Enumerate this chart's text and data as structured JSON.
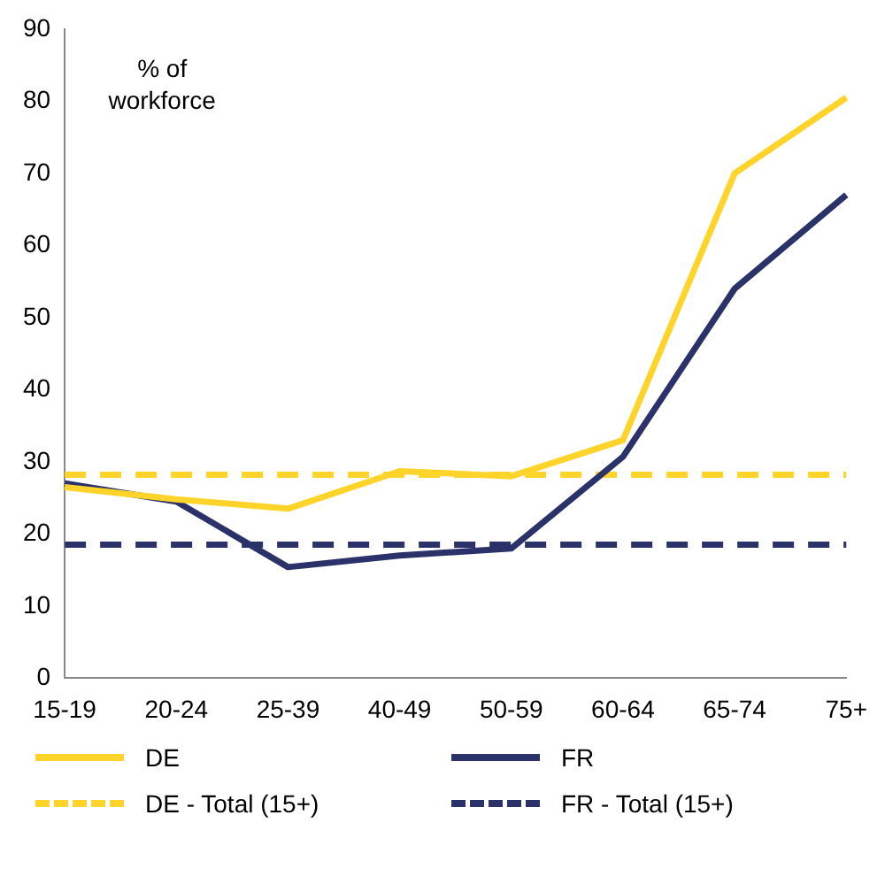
{
  "chart_data": {
    "type": "line",
    "ylabel": "% of\nworkforce",
    "categories": [
      "15-19",
      "20-24",
      "25-39",
      "40-49",
      "50-59",
      "60-64",
      "65-74",
      "75+"
    ],
    "series": [
      {
        "name": "DE",
        "color": "#ffd42a",
        "line_style": "solid",
        "values": [
          26.5,
          24.8,
          23.5,
          28.7,
          28,
          33,
          70,
          80.5
        ]
      },
      {
        "name": "FR",
        "color": "#2b3169",
        "line_style": "solid",
        "values": [
          27,
          24.5,
          15.4,
          17,
          18,
          30.7,
          54,
          67
        ]
      },
      {
        "name": "DE - Total (15+)",
        "color": "#ffd42a",
        "line_style": "dashed",
        "values": [
          28.2,
          28.2,
          28.2,
          28.2,
          28.2,
          28.2,
          28.2,
          28.2
        ]
      },
      {
        "name": "FR - Total (15+)",
        "color": "#2b3169",
        "line_style": "dashed",
        "values": [
          18.5,
          18.5,
          18.5,
          18.5,
          18.5,
          18.5,
          18.5,
          18.5
        ]
      }
    ],
    "ylim": [
      0,
      90
    ],
    "yticks": [
      0,
      10,
      20,
      30,
      40,
      50,
      60,
      70,
      80,
      90
    ],
    "grid": false,
    "legend": "bottom",
    "marker": "none"
  }
}
